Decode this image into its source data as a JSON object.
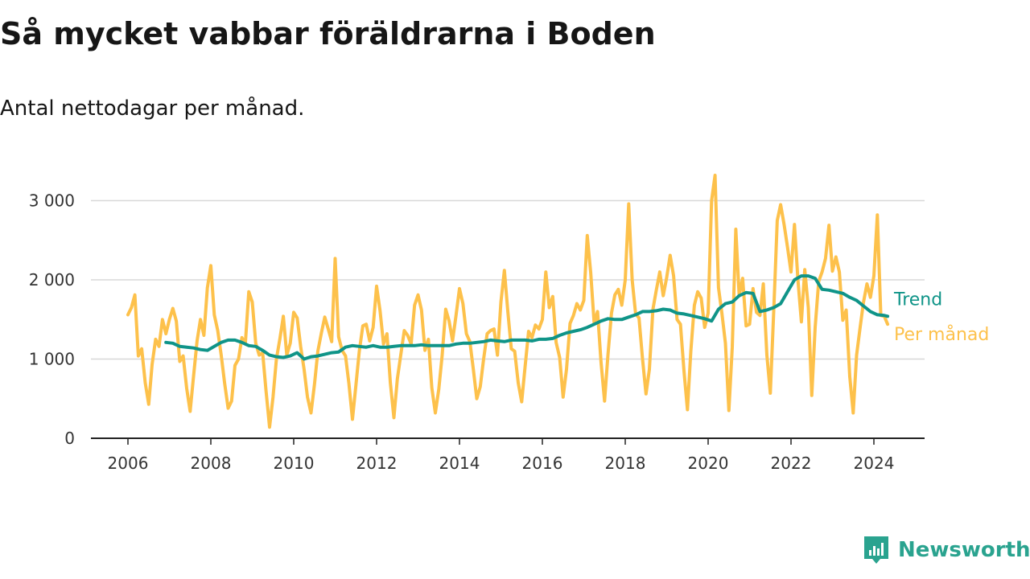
{
  "title": "Så mycket vabbar föräldrarna i Boden",
  "subtitle": "Antal nettodagar per månad.",
  "brand": {
    "name": "Newsworthy"
  },
  "chart_data": {
    "type": "line",
    "ylim": [
      0,
      3300
    ],
    "xlim": [
      2006,
      2025.2
    ],
    "y_ticks": [
      0,
      1000,
      2000,
      3000
    ],
    "y_tick_labels": [
      "0",
      "1 000",
      "2 000",
      "3 000"
    ],
    "x_ticks": [
      2006,
      2008,
      2010,
      2012,
      2014,
      2016,
      2018,
      2020,
      2022,
      2024
    ],
    "x_tick_labels": [
      "2006",
      "2008",
      "2010",
      "2012",
      "2014",
      "2016",
      "2018",
      "2020",
      "2022",
      "2024"
    ],
    "grid": "horizontal",
    "legend": "right, at line ends",
    "colors": {
      "trend": "#0f9488",
      "monthly": "#fdc14b",
      "axis": "#222222",
      "grid": "#d8d8d8"
    },
    "series": [
      {
        "name": "Per månad",
        "key": "monthly",
        "x": [
          2006.0,
          2006.083,
          2006.167,
          2006.25,
          2006.333,
          2006.417,
          2006.5,
          2006.583,
          2006.667,
          2006.75,
          2006.833,
          2006.917,
          2007.0,
          2007.083,
          2007.167,
          2007.25,
          2007.333,
          2007.417,
          2007.5,
          2007.583,
          2007.667,
          2007.75,
          2007.833,
          2007.917,
          2008.0,
          2008.083,
          2008.167,
          2008.25,
          2008.333,
          2008.417,
          2008.5,
          2008.583,
          2008.667,
          2008.75,
          2008.833,
          2008.917,
          2009.0,
          2009.083,
          2009.167,
          2009.25,
          2009.333,
          2009.417,
          2009.5,
          2009.583,
          2009.667,
          2009.75,
          2009.833,
          2009.917,
          2010.0,
          2010.083,
          2010.167,
          2010.25,
          2010.333,
          2010.417,
          2010.5,
          2010.583,
          2010.667,
          2010.75,
          2010.833,
          2010.917,
          2011.0,
          2011.083,
          2011.167,
          2011.25,
          2011.333,
          2011.417,
          2011.5,
          2011.583,
          2011.667,
          2011.75,
          2011.833,
          2011.917,
          2012.0,
          2012.083,
          2012.167,
          2012.25,
          2012.333,
          2012.417,
          2012.5,
          2012.583,
          2012.667,
          2012.75,
          2012.833,
          2012.917,
          2013.0,
          2013.083,
          2013.167,
          2013.25,
          2013.333,
          2013.417,
          2013.5,
          2013.583,
          2013.667,
          2013.75,
          2013.833,
          2013.917,
          2014.0,
          2014.083,
          2014.167,
          2014.25,
          2014.333,
          2014.417,
          2014.5,
          2014.583,
          2014.667,
          2014.75,
          2014.833,
          2014.917,
          2015.0,
          2015.083,
          2015.167,
          2015.25,
          2015.333,
          2015.417,
          2015.5,
          2015.583,
          2015.667,
          2015.75,
          2015.833,
          2015.917,
          2016.0,
          2016.083,
          2016.167,
          2016.25,
          2016.333,
          2016.417,
          2016.5,
          2016.583,
          2016.667,
          2016.75,
          2016.833,
          2016.917,
          2017.0,
          2017.083,
          2017.167,
          2017.25,
          2017.333,
          2017.417,
          2017.5,
          2017.583,
          2017.667,
          2017.75,
          2017.833,
          2017.917,
          2018.0,
          2018.083,
          2018.167,
          2018.25,
          2018.333,
          2018.417,
          2018.5,
          2018.583,
          2018.667,
          2018.75,
          2018.833,
          2018.917,
          2019.0,
          2019.083,
          2019.167,
          2019.25,
          2019.333,
          2019.417,
          2019.5,
          2019.583,
          2019.667,
          2019.75,
          2019.833,
          2019.917,
          2020.0,
          2020.083,
          2020.167,
          2020.25,
          2020.333,
          2020.417,
          2020.5,
          2020.583,
          2020.667,
          2020.75,
          2020.833,
          2020.917,
          2021.0,
          2021.083,
          2021.167,
          2021.25,
          2021.333,
          2021.417,
          2021.5,
          2021.583,
          2021.667,
          2021.75,
          2021.833,
          2021.917,
          2022.0,
          2022.083,
          2022.167,
          2022.25,
          2022.333,
          2022.417,
          2022.5,
          2022.583,
          2022.667,
          2022.75,
          2022.833,
          2022.917,
          2023.0,
          2023.083,
          2023.167,
          2023.25,
          2023.333,
          2023.417,
          2023.5,
          2023.583,
          2023.667,
          2023.75,
          2023.833,
          2023.917,
          2024.0,
          2024.083,
          2024.167,
          2024.25,
          2024.333
        ],
        "values": [
          1560,
          1650,
          1810,
          1040,
          1130,
          700,
          430,
          930,
          1250,
          1160,
          1500,
          1320,
          1500,
          1640,
          1480,
          970,
          1040,
          630,
          340,
          780,
          1230,
          1500,
          1300,
          1900,
          2180,
          1560,
          1360,
          1050,
          700,
          380,
          470,
          920,
          1000,
          1270,
          1200,
          1850,
          1720,
          1200,
          1050,
          1080,
          600,
          140,
          520,
          1000,
          1260,
          1540,
          1050,
          1200,
          1590,
          1520,
          1160,
          870,
          520,
          320,
          680,
          1100,
          1330,
          1530,
          1380,
          1220,
          2270,
          1280,
          1110,
          1040,
          690,
          240,
          670,
          1100,
          1420,
          1440,
          1230,
          1400,
          1920,
          1610,
          1190,
          1320,
          700,
          260,
          750,
          1050,
          1360,
          1300,
          1190,
          1680,
          1810,
          1620,
          1110,
          1250,
          640,
          320,
          620,
          1050,
          1630,
          1480,
          1230,
          1550,
          1890,
          1700,
          1320,
          1220,
          880,
          500,
          650,
          1000,
          1320,
          1360,
          1380,
          1050,
          1720,
          2120,
          1600,
          1130,
          1100,
          700,
          460,
          900,
          1350,
          1270,
          1430,
          1380,
          1500,
          2100,
          1650,
          1790,
          1210,
          1020,
          520,
          870,
          1450,
          1550,
          1700,
          1620,
          1740,
          2560,
          2090,
          1450,
          1600,
          950,
          470,
          1050,
          1580,
          1810,
          1880,
          1680,
          2000,
          2960,
          2000,
          1570,
          1520,
          1000,
          560,
          870,
          1630,
          1870,
          2100,
          1800,
          2030,
          2310,
          2050,
          1500,
          1440,
          850,
          360,
          1100,
          1680,
          1850,
          1770,
          1400,
          1580,
          3000,
          3320,
          1900,
          1580,
          1200,
          350,
          1150,
          2640,
          1800,
          2020,
          1420,
          1440,
          1890,
          1590,
          1550,
          1950,
          1050,
          570,
          1600,
          2750,
          2950,
          2700,
          2410,
          2100,
          2700,
          2000,
          1470,
          2130,
          1650,
          540,
          1400,
          1980,
          2100,
          2270,
          2690,
          2110,
          2290,
          2100,
          1490,
          1620,
          780,
          320,
          1050,
          1400,
          1720,
          1950,
          1780,
          2050,
          2820,
          1550,
          1540,
          1440
        ]
      },
      {
        "name": "Trend",
        "key": "trend",
        "x": [
          2006.917,
          2007.083,
          2007.25,
          2007.417,
          2007.583,
          2007.75,
          2007.917,
          2008.083,
          2008.25,
          2008.417,
          2008.583,
          2008.75,
          2008.917,
          2009.083,
          2009.25,
          2009.417,
          2009.583,
          2009.75,
          2009.917,
          2010.083,
          2010.25,
          2010.417,
          2010.583,
          2010.75,
          2010.917,
          2011.083,
          2011.25,
          2011.417,
          2011.583,
          2011.75,
          2011.917,
          2012.083,
          2012.25,
          2012.417,
          2012.583,
          2012.75,
          2012.917,
          2013.083,
          2013.25,
          2013.417,
          2013.583,
          2013.75,
          2013.917,
          2014.083,
          2014.25,
          2014.417,
          2014.583,
          2014.75,
          2014.917,
          2015.083,
          2015.25,
          2015.417,
          2015.583,
          2015.75,
          2015.917,
          2016.083,
          2016.25,
          2016.417,
          2016.583,
          2016.75,
          2016.917,
          2017.083,
          2017.25,
          2017.417,
          2017.583,
          2017.75,
          2017.917,
          2018.083,
          2018.25,
          2018.417,
          2018.583,
          2018.75,
          2018.917,
          2019.083,
          2019.25,
          2019.417,
          2019.583,
          2019.75,
          2019.917,
          2020.083,
          2020.25,
          2020.417,
          2020.583,
          2020.75,
          2020.917,
          2021.083,
          2021.25,
          2021.417,
          2021.583,
          2021.75,
          2021.917,
          2022.083,
          2022.25,
          2022.417,
          2022.583,
          2022.75,
          2022.917,
          2023.083,
          2023.25,
          2023.417,
          2023.583,
          2023.75,
          2023.917,
          2024.083,
          2024.25,
          2024.333
        ],
        "values": [
          1210,
          1200,
          1160,
          1150,
          1140,
          1120,
          1110,
          1160,
          1210,
          1240,
          1240,
          1210,
          1170,
          1160,
          1110,
          1050,
          1030,
          1020,
          1040,
          1080,
          1000,
          1030,
          1040,
          1060,
          1080,
          1090,
          1150,
          1170,
          1160,
          1150,
          1170,
          1150,
          1150,
          1160,
          1170,
          1170,
          1170,
          1180,
          1170,
          1170,
          1170,
          1170,
          1190,
          1200,
          1200,
          1210,
          1220,
          1240,
          1230,
          1220,
          1240,
          1240,
          1240,
          1230,
          1250,
          1250,
          1260,
          1300,
          1330,
          1350,
          1370,
          1400,
          1440,
          1480,
          1510,
          1500,
          1500,
          1530,
          1560,
          1600,
          1600,
          1610,
          1630,
          1620,
          1580,
          1570,
          1550,
          1530,
          1510,
          1480,
          1630,
          1700,
          1720,
          1800,
          1840,
          1830,
          1600,
          1620,
          1650,
          1700,
          1850,
          2000,
          2050,
          2050,
          2020,
          1880,
          1870,
          1850,
          1830,
          1780,
          1740,
          1670,
          1600,
          1560,
          1550,
          1540
        ]
      }
    ]
  }
}
